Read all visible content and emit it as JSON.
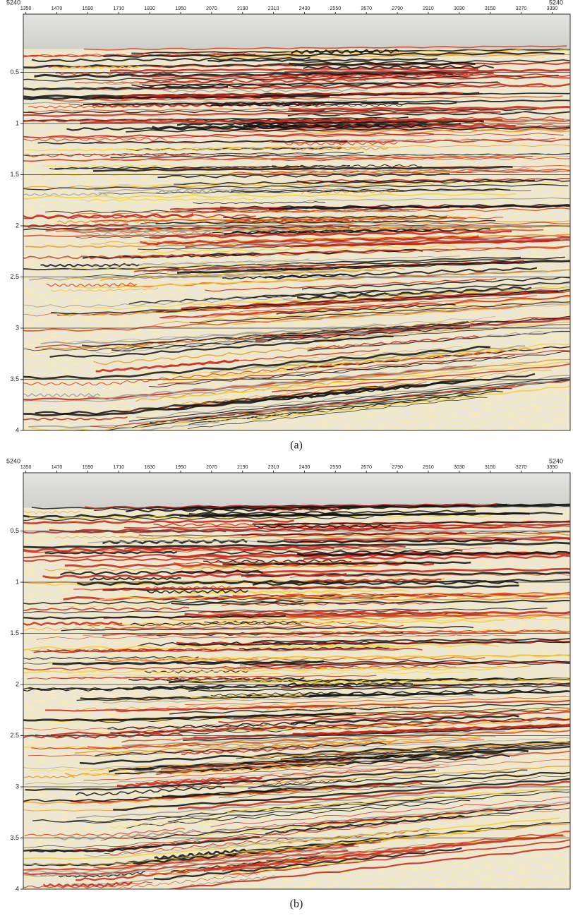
{
  "chart_data": [
    {
      "type": "seismic",
      "corner_labels": [
        "5240",
        "5240"
      ],
      "xlim": [
        1340,
        3460
      ],
      "xticks": [
        1350,
        1470,
        1590,
        1710,
        1830,
        1950,
        2070,
        2190,
        2310,
        2430,
        2550,
        2670,
        2790,
        2910,
        3030,
        3150,
        3270,
        3390
      ],
      "ylim": [
        0,
        4
      ],
      "yticks": [
        0.5,
        1,
        1.5,
        2,
        2.5,
        3,
        3.5,
        4
      ],
      "grid": true,
      "caption": "(a)"
    },
    {
      "type": "seismic",
      "corner_labels": [
        "5240",
        "5240"
      ],
      "xlim": [
        1340,
        3460
      ],
      "xticks": [
        1350,
        1470,
        1590,
        1710,
        1830,
        1950,
        2070,
        2190,
        2310,
        2430,
        2550,
        2670,
        2790,
        2910,
        3030,
        3150,
        3270,
        3390
      ],
      "ylim": [
        0,
        4
      ],
      "yticks": [
        0.5,
        1,
        1.5,
        2,
        2.5,
        3,
        3.5,
        4
      ],
      "grid": true,
      "caption": "(b)"
    }
  ]
}
